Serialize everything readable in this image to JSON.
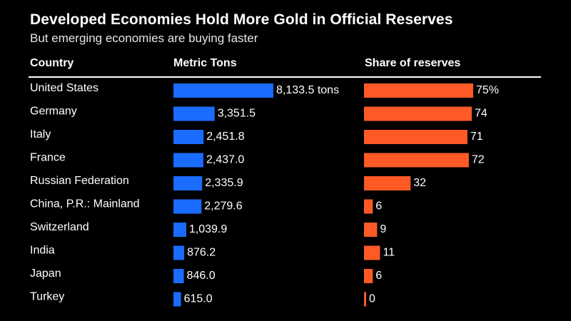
{
  "title": "Developed Economies Hold More Gold in Official Reserves",
  "subtitle": "But emerging economies are buying faster",
  "headers": {
    "country": "Country",
    "tons": "Metric Tons",
    "share": "Share of reserves"
  },
  "colors": {
    "background": "#000000",
    "tons_bar": "#1a6cff",
    "share_bar": "#ff5a26",
    "text": "#ffffff"
  },
  "chart_data": {
    "type": "bar",
    "orientation": "horizontal",
    "categories": [
      "United States",
      "Germany",
      "Italy",
      "France",
      "Russian Federation",
      "China, P.R.: Mainland",
      "Switzerland",
      "India",
      "Japan",
      "Turkey"
    ],
    "series": [
      {
        "name": "Metric Tons",
        "values": [
          8133.5,
          3351.5,
          2451.8,
          2437.0,
          2335.9,
          2279.6,
          1039.9,
          876.2,
          846.0,
          615.0
        ],
        "labels": [
          "8,133.5 tons",
          "3,351.5",
          "2,451.8",
          "2,437.0",
          "2,335.9",
          "2,279.6",
          "1,039.9",
          "876.2",
          "846.0",
          "615.0"
        ]
      },
      {
        "name": "Share of reserves",
        "values": [
          75,
          74,
          71,
          72,
          32,
          6,
          9,
          11,
          6,
          0
        ],
        "labels": [
          "75%",
          "74",
          "71",
          "72",
          "32",
          "6",
          "9",
          "11",
          "6",
          "0"
        ]
      }
    ]
  }
}
